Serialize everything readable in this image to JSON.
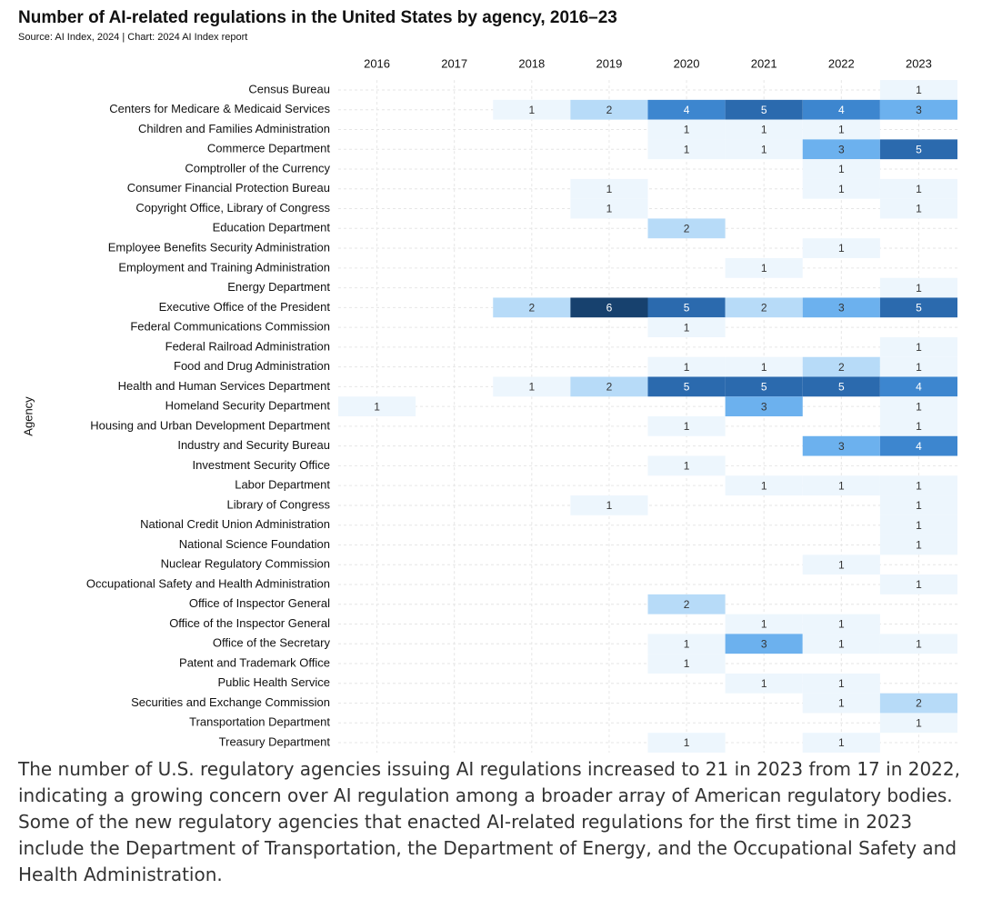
{
  "chart_data": {
    "type": "heatmap",
    "title": "Number of AI-related regulations in the United States by agency, 2016–23",
    "subtitle": "Source: AI Index, 2024 | Chart: 2024 AI Index report",
    "y_label": "Agency",
    "x": [
      2016,
      2017,
      2018,
      2019,
      2020,
      2021,
      2022,
      2023
    ],
    "categories": [
      "Census Bureau",
      "Centers for Medicare & Medicaid Services",
      "Children and Families Administration",
      "Commerce Department",
      "Comptroller of the Currency",
      "Consumer Financial Protection Bureau",
      "Copyright Office, Library of Congress",
      "Education Department",
      "Employee Benefits Security Administration",
      "Employment and Training Administration",
      "Energy Department",
      "Executive Office of the President",
      "Federal Communications Commission",
      "Federal Railroad Administration",
      "Food and Drug Administration",
      "Health and Human Services Department",
      "Homeland Security Department",
      "Housing and Urban Development Department",
      "Industry and Security Bureau",
      "Investment Security Office",
      "Labor Department",
      "Library of Congress",
      "National Credit Union Administration",
      "National Science Foundation",
      "Nuclear Regulatory Commission",
      "Occupational Safety and Health Administration",
      "Office of Inspector General",
      "Office of the Inspector General",
      "Office of the Secretary",
      "Patent and Trademark Office",
      "Public Health Service",
      "Securities and Exchange Commission",
      "Transportation Department",
      "Treasury Department"
    ],
    "values": [
      [
        null,
        null,
        null,
        null,
        null,
        null,
        null,
        1
      ],
      [
        null,
        null,
        1,
        2,
        4,
        5,
        4,
        3
      ],
      [
        null,
        null,
        null,
        null,
        1,
        1,
        1,
        null
      ],
      [
        null,
        null,
        null,
        null,
        1,
        1,
        3,
        5
      ],
      [
        null,
        null,
        null,
        null,
        null,
        null,
        1,
        null
      ],
      [
        null,
        null,
        null,
        1,
        null,
        null,
        1,
        1
      ],
      [
        null,
        null,
        null,
        1,
        null,
        null,
        null,
        1
      ],
      [
        null,
        null,
        null,
        null,
        2,
        null,
        null,
        null
      ],
      [
        null,
        null,
        null,
        null,
        null,
        null,
        1,
        null
      ],
      [
        null,
        null,
        null,
        null,
        null,
        1,
        null,
        null
      ],
      [
        null,
        null,
        null,
        null,
        null,
        null,
        null,
        1
      ],
      [
        null,
        null,
        2,
        6,
        5,
        2,
        3,
        5
      ],
      [
        null,
        null,
        null,
        null,
        1,
        null,
        null,
        null
      ],
      [
        null,
        null,
        null,
        null,
        null,
        null,
        null,
        1
      ],
      [
        null,
        null,
        null,
        null,
        1,
        1,
        2,
        1
      ],
      [
        null,
        null,
        1,
        2,
        5,
        5,
        5,
        4
      ],
      [
        1,
        null,
        null,
        null,
        null,
        3,
        null,
        1
      ],
      [
        null,
        null,
        null,
        null,
        1,
        null,
        null,
        1
      ],
      [
        null,
        null,
        null,
        null,
        null,
        null,
        3,
        4
      ],
      [
        null,
        null,
        null,
        null,
        1,
        null,
        null,
        null
      ],
      [
        null,
        null,
        null,
        null,
        null,
        1,
        1,
        1
      ],
      [
        null,
        null,
        null,
        1,
        null,
        null,
        null,
        1
      ],
      [
        null,
        null,
        null,
        null,
        null,
        null,
        null,
        1
      ],
      [
        null,
        null,
        null,
        null,
        null,
        null,
        null,
        1
      ],
      [
        null,
        null,
        null,
        null,
        null,
        null,
        1,
        null
      ],
      [
        null,
        null,
        null,
        null,
        null,
        null,
        null,
        1
      ],
      [
        null,
        null,
        null,
        null,
        2,
        null,
        null,
        null
      ],
      [
        null,
        null,
        null,
        null,
        null,
        1,
        1,
        null
      ],
      [
        null,
        null,
        null,
        null,
        1,
        3,
        1,
        1
      ],
      [
        null,
        null,
        null,
        null,
        1,
        null,
        null,
        null
      ],
      [
        null,
        null,
        null,
        null,
        null,
        1,
        1,
        null
      ],
      [
        null,
        null,
        null,
        null,
        null,
        null,
        1,
        2
      ],
      [
        null,
        null,
        null,
        null,
        null,
        null,
        null,
        1
      ],
      [
        null,
        null,
        null,
        null,
        1,
        null,
        1,
        null
      ]
    ],
    "color_scale": [
      "#edf6fd",
      "#b7dbf8",
      "#6cb1ee",
      "#3d86cf",
      "#2b6aae",
      "#17416e"
    ],
    "grid": true
  },
  "caption": "The number of U.S. regulatory agencies issuing AI regulations increased to 21 in 2023 from 17 in 2022, indicating a growing concern over AI regulation among a broader array of American regulatory bodies. Some of the new regulatory agencies that enacted AI-related regulations for the first time in 2023 include the Department of Transportation, the Department of Energy, and the Occupational Safety and Health Administration."
}
